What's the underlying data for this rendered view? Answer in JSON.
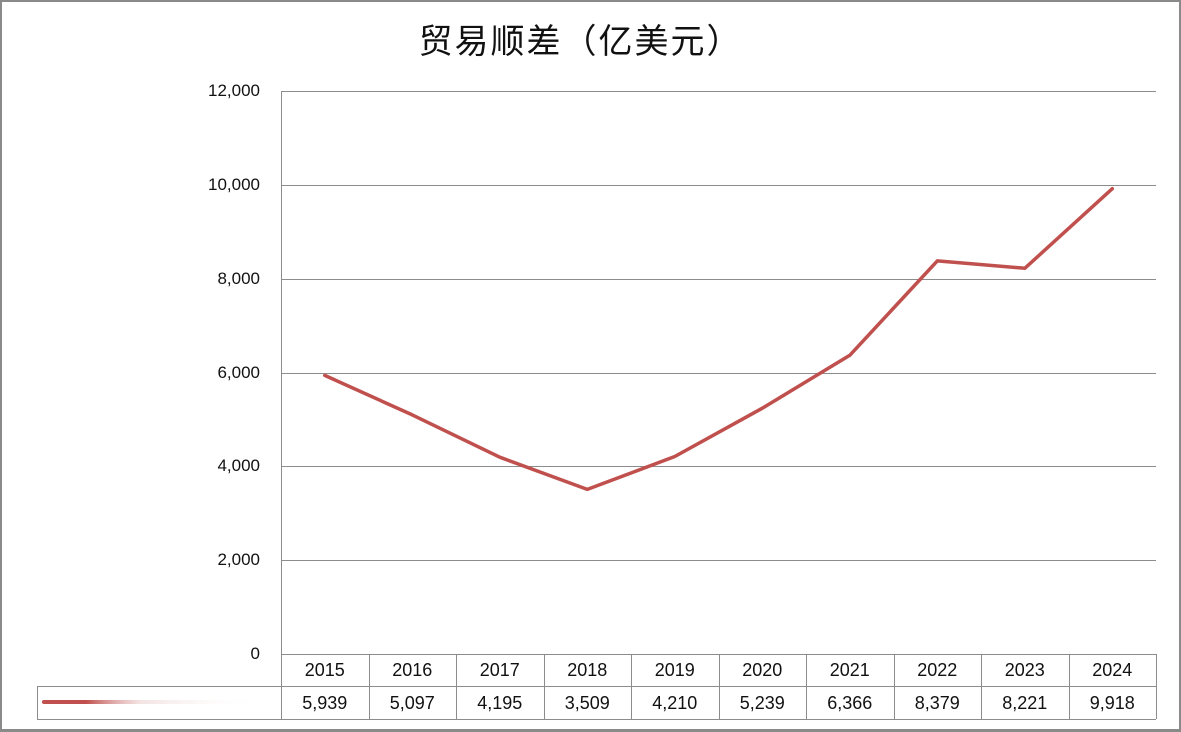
{
  "title": "贸易顺差（亿美元）",
  "chart_data": {
    "type": "line",
    "title": "贸易顺差（亿美元）",
    "xlabel": "",
    "ylabel": "",
    "categories": [
      "2015",
      "2016",
      "2017",
      "2018",
      "2019",
      "2020",
      "2021",
      "2022",
      "2023",
      "2024"
    ],
    "series": [
      {
        "name": "",
        "color": "#c0504d",
        "values": [
          5939,
          5097,
          4195,
          3509,
          4210,
          5239,
          6366,
          8379,
          8221,
          9918
        ]
      }
    ],
    "ylim": [
      0,
      12000
    ],
    "yticks": [
      0,
      2000,
      4000,
      6000,
      8000,
      10000,
      12000
    ],
    "ytick_labels": [
      "0",
      "2,000",
      "4,000",
      "6,000",
      "8,000",
      "10,000",
      "12,000"
    ],
    "grid": true,
    "legend_position": "data-table",
    "data_table": {
      "header": [
        "2015",
        "2016",
        "2017",
        "2018",
        "2019",
        "2020",
        "2021",
        "2022",
        "2023",
        "2024"
      ],
      "row": [
        "5,939",
        "5,097",
        "4,195",
        "3,509",
        "4,210",
        "5,239",
        "6,366",
        "8,379",
        "8,221",
        "9,918"
      ]
    }
  }
}
